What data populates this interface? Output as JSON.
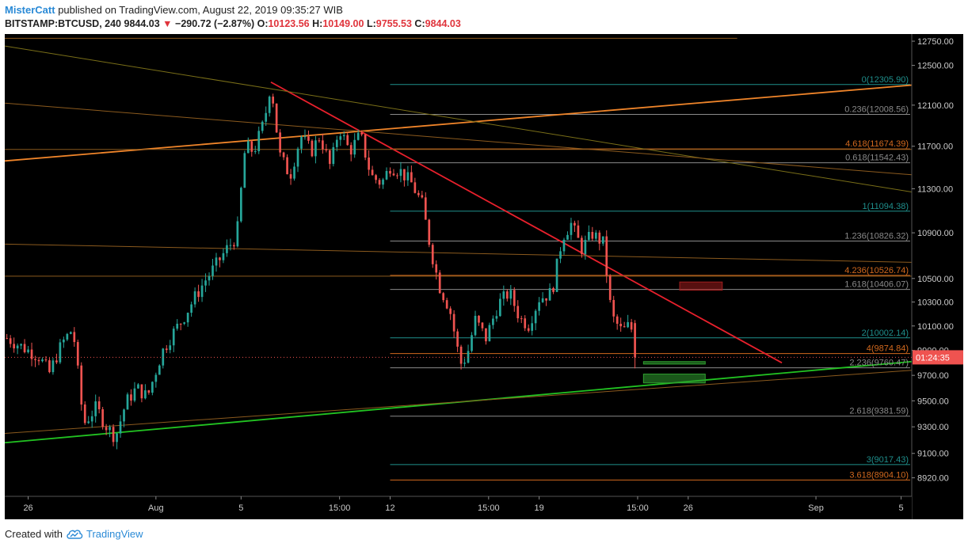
{
  "header": {
    "author": "MisterCatt",
    "published_text": "published on TradingView.com, August 22, 2019 09:35:27 WIB",
    "symbol": "BITSTAMP:BTCUSD, 240",
    "last_price": "9844.03",
    "change_arrow": "▼",
    "change": "−290.72 (−2.87%)",
    "open_label": "O:",
    "open": "10123.56",
    "high_label": "H:",
    "high": "10149.00",
    "low_label": "L:",
    "low": "9755.53",
    "close_label": "C:",
    "close": "9844.03"
  },
  "footer": {
    "created_with": "Created with",
    "brand": "TradingView"
  },
  "chart_data": {
    "type": "candlestick",
    "y_axis": {
      "ticks": [
        12750,
        12500,
        12100,
        11700,
        11300,
        10900,
        10500,
        10300,
        10100,
        9900,
        9700,
        9500,
        9300,
        9100,
        8920
      ],
      "tick_labels": [
        "12750.00",
        "12500.00",
        "12100.00",
        "11700.00",
        "11300.00",
        "10900.00",
        "10500.00",
        "10300.00",
        "10100.00",
        "9900.00",
        "9700.00",
        "9500.00",
        "9300.00",
        "9100.00",
        "8920.00"
      ],
      "scale": "log",
      "range": [
        8820,
        12800
      ]
    },
    "x_axis": {
      "ticks": [
        {
          "label": "26",
          "day": 0
        },
        {
          "label": "Aug",
          "day": 6
        },
        {
          "label": "5",
          "day": 10
        },
        {
          "label": "15:00",
          "day": 14.625
        },
        {
          "label": "12",
          "day": 17
        },
        {
          "label": "15:00",
          "day": 21.625
        },
        {
          "label": "19",
          "day": 24
        },
        {
          "label": "15:00",
          "day": 28.625
        },
        {
          "label": "26",
          "day": 31
        },
        {
          "label": "Sep",
          "day": 37
        },
        {
          "label": "5",
          "day": 41
        }
      ],
      "range_days": [
        -1.1,
        41.5
      ]
    },
    "price_badge": {
      "value": 9844.03,
      "label": "01:24:35"
    },
    "candle_path": [
      [
        -1.0,
        10000
      ],
      [
        0.5,
        9850
      ],
      [
        1.0,
        9720
      ],
      [
        1.6,
        9960
      ],
      [
        2.1,
        10080
      ],
      [
        2.6,
        9320
      ],
      [
        3.2,
        9450
      ],
      [
        3.6,
        9320
      ],
      [
        4.1,
        9220
      ],
      [
        4.6,
        9490
      ],
      [
        5.1,
        9600
      ],
      [
        5.6,
        9530
      ],
      [
        6.3,
        9890
      ],
      [
        6.8,
        10040
      ],
      [
        7.3,
        10170
      ],
      [
        7.8,
        10330
      ],
      [
        8.3,
        10480
      ],
      [
        8.8,
        10610
      ],
      [
        9.3,
        10750
      ],
      [
        9.8,
        10870
      ],
      [
        10.2,
        11700
      ],
      [
        10.6,
        11650
      ],
      [
        11.1,
        11950
      ],
      [
        11.4,
        12330
      ],
      [
        11.8,
        11620
      ],
      [
        12.3,
        11420
      ],
      [
        12.8,
        11800
      ],
      [
        13.3,
        11650
      ],
      [
        13.7,
        11800
      ],
      [
        14.2,
        11500
      ],
      [
        14.6,
        11880
      ],
      [
        15.1,
        11650
      ],
      [
        15.6,
        11810
      ],
      [
        16.1,
        11420
      ],
      [
        16.6,
        11350
      ],
      [
        17.0,
        11510
      ],
      [
        17.5,
        11460
      ],
      [
        18.0,
        11350
      ],
      [
        18.5,
        11160
      ],
      [
        18.9,
        10760
      ],
      [
        19.3,
        10440
      ],
      [
        19.8,
        10240
      ],
      [
        20.3,
        9790
      ],
      [
        20.6,
        9850
      ],
      [
        21.0,
        10150
      ],
      [
        21.5,
        10000
      ],
      [
        22.1,
        10290
      ],
      [
        22.6,
        10380
      ],
      [
        23.1,
        10160
      ],
      [
        23.5,
        10110
      ],
      [
        24.0,
        10330
      ],
      [
        24.6,
        10380
      ],
      [
        25.1,
        10870
      ],
      [
        25.5,
        10980
      ],
      [
        26.0,
        10760
      ],
      [
        26.5,
        10890
      ],
      [
        27.0,
        10810
      ],
      [
        27.4,
        10180
      ],
      [
        27.9,
        10050
      ],
      [
        28.3,
        10120
      ],
      [
        28.5,
        9844
      ]
    ],
    "levels": [
      {
        "label": "0(12305.90)",
        "value": 12305.9,
        "color": "#1f8f8c"
      },
      {
        "label": "0.236(12008.56)",
        "value": 12008.56,
        "color": "#8a8a8a"
      },
      {
        "label": "4.618(11674.39)",
        "value": 11674.39,
        "color": "#d2691e"
      },
      {
        "label": "0.618(11542.43)",
        "value": 11542.43,
        "color": "#8a8a8a"
      },
      {
        "label": "1(11094.38)",
        "value": 11094.38,
        "color": "#1f8f8c"
      },
      {
        "label": "1.236(10826.32)",
        "value": 10826.32,
        "color": "#8a8a8a"
      },
      {
        "label": "4.236(10526.74)",
        "value": 10526.74,
        "color": "#d2691e"
      },
      {
        "label": "1.618(10406.07)",
        "value": 10406.07,
        "color": "#8a8a8a"
      },
      {
        "label": "2(10002.14)",
        "value": 10002.14,
        "color": "#1f8f8c"
      },
      {
        "label": "4(9874.84)",
        "value": 9874.84,
        "color": "#d2691e"
      },
      {
        "label": "2.236(9760.47)",
        "value": 9760.47,
        "color": "#8a8a8a"
      },
      {
        "label": "2.618(9381.59)",
        "value": 9381.59,
        "color": "#8a8a8a"
      },
      {
        "label": "3(9017.43)",
        "value": 9017.43,
        "color": "#1f8f8c"
      },
      {
        "label": "3.618(8904.10)",
        "value": 8904.1,
        "color": "#d2691e"
      }
    ],
    "trend_lines": [
      {
        "color": "#e8202c",
        "from": [
          11.4,
          12330
        ],
        "to": [
          35.4,
          9800
        ]
      },
      {
        "color": "#f0852a",
        "from": [
          -1.1,
          11560
        ],
        "to": [
          41.5,
          12300
        ]
      },
      {
        "color": "#7a6f18",
        "from": [
          -1.1,
          12700
        ],
        "to": [
          41.5,
          11270
        ]
      },
      {
        "color": "#22c322",
        "from": [
          -1.1,
          9180
        ],
        "to": [
          41.5,
          9810
        ]
      },
      {
        "color": "#8b5a1e",
        "from": [
          -1.1,
          9250
        ],
        "to": [
          41.5,
          9740
        ]
      },
      {
        "color": "#8b5a1e",
        "from": [
          -1.1,
          10800
        ],
        "to": [
          41.5,
          10640
        ]
      },
      {
        "color": "#8b5a1e",
        "from": [
          -1.1,
          12120
        ],
        "to": [
          41.5,
          11430
        ]
      },
      {
        "color": "#8b5a1e",
        "from": [
          -1.1,
          10520
        ],
        "to": [
          41.5,
          10520
        ]
      },
      {
        "color": "#8b5a1e",
        "from": [
          -1.1,
          11670
        ],
        "to": [
          41.5,
          11670
        ]
      },
      {
        "color": "#8b5a1e",
        "from": [
          -1.1,
          12780
        ],
        "to": [
          33.3,
          12780
        ]
      }
    ],
    "boxes": [
      {
        "color": "#a11e1e",
        "x0": 30.6,
        "x1": 32.6,
        "y0": 10400,
        "y1": 10470
      },
      {
        "color": "#2f9f2f",
        "x0": 28.9,
        "x1": 31.8,
        "y0": 9640,
        "y1": 9710
      },
      {
        "color": "#2f9f2f",
        "x0": 28.9,
        "x1": 31.8,
        "y0": 9790,
        "y1": 9810
      }
    ],
    "colors": {
      "up": "#26a69a",
      "down": "#ef5350",
      "background": "#000000",
      "axis_text": "#cccccc"
    }
  }
}
